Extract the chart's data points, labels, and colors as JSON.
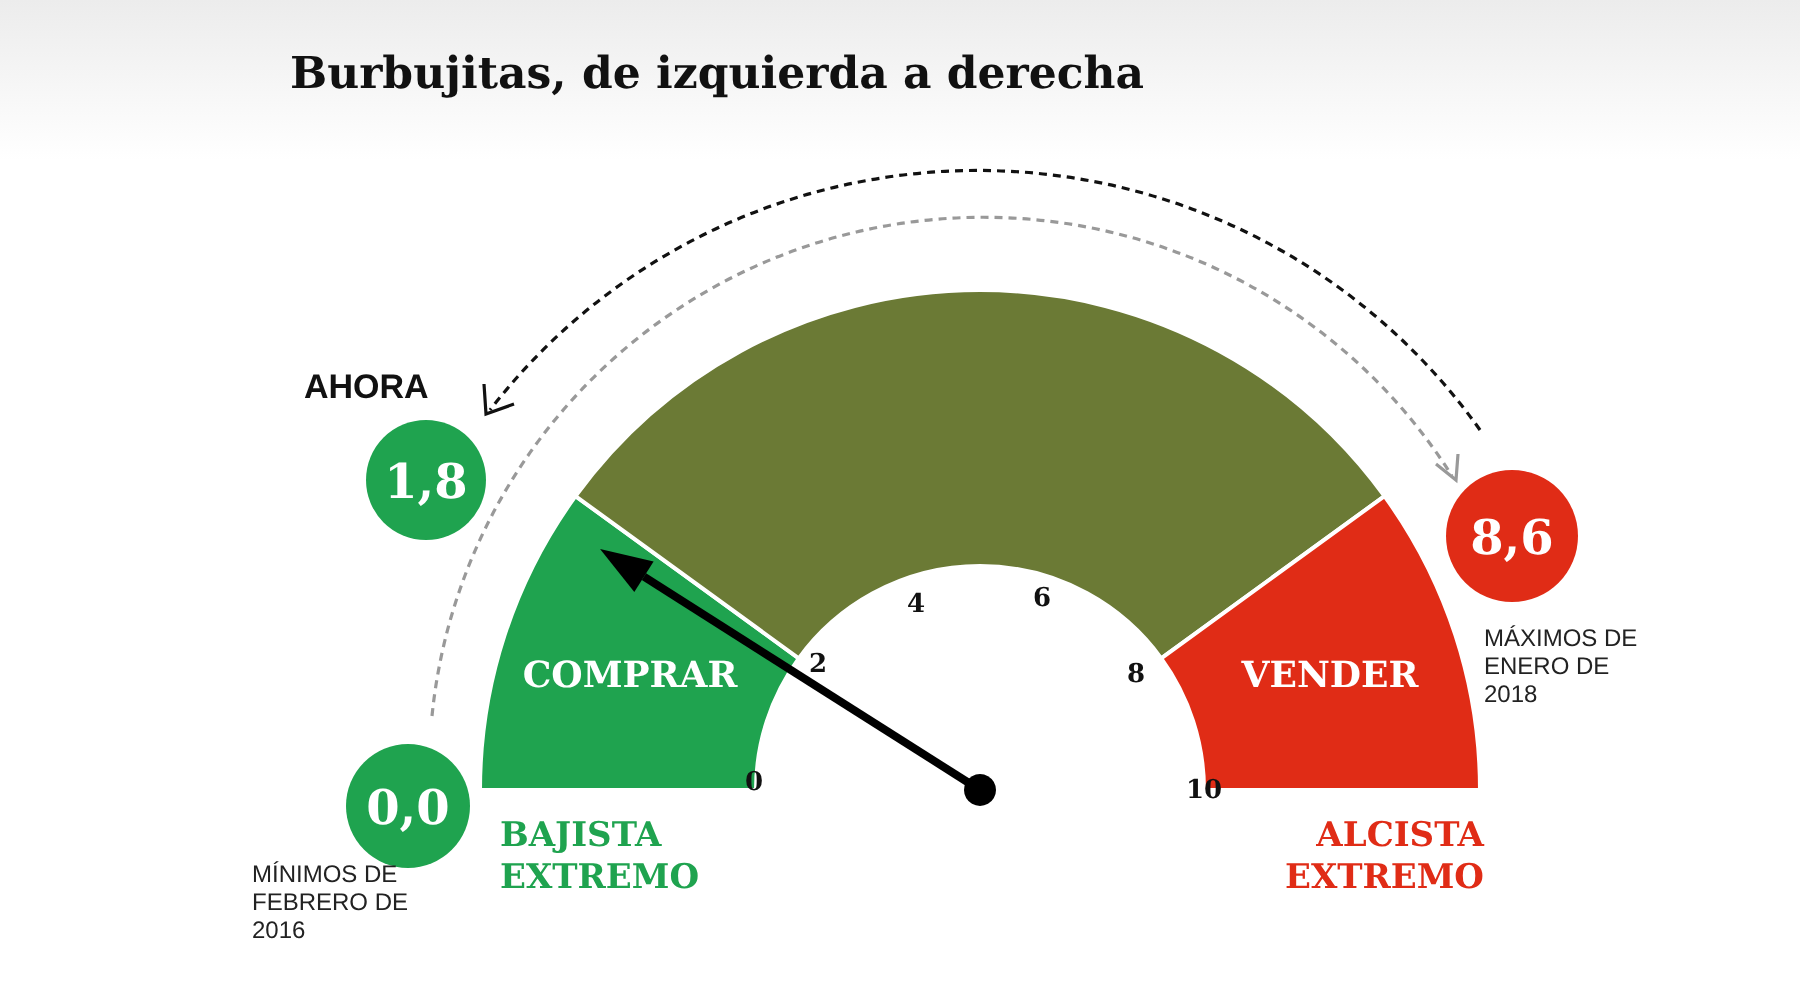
{
  "chart_data": {
    "type": "donut",
    "title": "Burbujitas, de izquierda a derecha",
    "categories": [
      "COMPRAR",
      null,
      "VENDER"
    ],
    "values": [
      20,
      60,
      20
    ],
    "colors": [
      "#1fa34f",
      "#6b7a35",
      "#e02c16"
    ],
    "needle": "COMPRAR",
    "annotations": [
      "AHORA",
      "1,8",
      "0,0",
      "MÍNIMOS DE FEBRERO DE 2016",
      "8,6",
      "MÁXIMOS DE ENERO DE 2018",
      "BAJISTA EXTREMO",
      "ALCISTA EXTREMO",
      "0",
      "2",
      "4",
      "6",
      "8",
      "10"
    ]
  }
}
